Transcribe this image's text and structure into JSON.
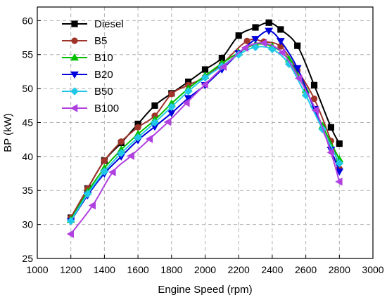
{
  "chart_data": {
    "type": "line",
    "title": "",
    "xlabel": "Engine Speed  (rpm)",
    "ylabel": "BP  (kW)",
    "xlim": [
      1000,
      3000
    ],
    "ylim": [
      25,
      62
    ],
    "x_ticks": [
      1000,
      1200,
      1400,
      1600,
      1800,
      2000,
      2200,
      2400,
      2600,
      2800,
      3000
    ],
    "y_ticks": [
      25,
      30,
      35,
      40,
      45,
      50,
      55,
      60
    ],
    "x_tick_labels": [
      "1000",
      "1200",
      "1400",
      "1600",
      "1800",
      "2000",
      "2200",
      "2400",
      "2600",
      "2800",
      "3000"
    ],
    "y_tick_labels": [
      "25",
      "30",
      "35",
      "40",
      "45",
      "50",
      "55",
      "60"
    ],
    "grid": true,
    "legend_position": "top-left",
    "series": [
      {
        "name": "Diesel",
        "color": "#000000",
        "marker": "square",
        "x": [
          1200,
          1300,
          1400,
          1500,
          1600,
          1700,
          1800,
          1900,
          2000,
          2100,
          2200,
          2300,
          2380,
          2450,
          2550,
          2650,
          2750,
          2800
        ],
        "y": [
          31.0,
          35.3,
          39.4,
          42.0,
          44.8,
          47.5,
          49.3,
          51.0,
          52.8,
          54.5,
          57.8,
          59.0,
          59.7,
          58.7,
          56.3,
          50.5,
          44.3,
          41.9
        ]
      },
      {
        "name": "B5",
        "color": "#a0342a",
        "marker": "circle",
        "x": [
          1200,
          1300,
          1400,
          1500,
          1600,
          1700,
          1800,
          1900,
          2000,
          2100,
          2250,
          2350,
          2450,
          2550,
          2650,
          2750,
          2800
        ],
        "y": [
          31.0,
          35.3,
          39.4,
          42.2,
          44.3,
          46.0,
          49.2,
          50.5,
          51.7,
          53.6,
          57.0,
          56.9,
          56.2,
          52.7,
          48.5,
          42.3,
          38.2
        ]
      },
      {
        "name": "B10",
        "color": "#00c000",
        "marker": "triangle-up",
        "x": [
          1200,
          1300,
          1400,
          1500,
          1600,
          1700,
          1800,
          1900,
          2000,
          2100,
          2200,
          2300,
          2400,
          2500,
          2600,
          2700,
          2800
        ],
        "y": [
          30.7,
          34.8,
          38.3,
          41.0,
          43.3,
          45.4,
          47.8,
          50.0,
          51.9,
          53.7,
          55.3,
          56.5,
          56.2,
          54.3,
          49.8,
          44.5,
          39.6
        ]
      },
      {
        "name": "B20",
        "color": "#0000dd",
        "marker": "triangle-down",
        "x": [
          1200,
          1300,
          1400,
          1500,
          1600,
          1700,
          1800,
          1900,
          2000,
          2100,
          2200,
          2300,
          2380,
          2450,
          2550,
          2650,
          2750,
          2800
        ],
        "y": [
          30.5,
          34.3,
          37.5,
          40.0,
          42.4,
          44.4,
          46.4,
          48.6,
          50.5,
          52.8,
          55.2,
          57.3,
          58.5,
          57.0,
          53.0,
          47.0,
          41.0,
          37.8
        ]
      },
      {
        "name": "B50",
        "color": "#22c8e8",
        "marker": "diamond",
        "x": [
          1200,
          1300,
          1400,
          1500,
          1600,
          1700,
          1800,
          1900,
          2000,
          2100,
          2200,
          2300,
          2400,
          2500,
          2600,
          2700,
          2800
        ],
        "y": [
          30.5,
          34.5,
          37.8,
          40.5,
          42.8,
          45.0,
          47.3,
          49.6,
          51.6,
          53.3,
          55.0,
          56.1,
          55.8,
          53.6,
          49.0,
          44.0,
          39.0
        ]
      },
      {
        "name": "B100",
        "color": "#b040e0",
        "marker": "triangle-left",
        "x": [
          1200,
          1330,
          1450,
          1560,
          1670,
          1780,
          1890,
          2000,
          2110,
          2240,
          2350,
          2460,
          2560,
          2660,
          2750,
          2800
        ],
        "y": [
          28.6,
          32.8,
          37.7,
          40.1,
          42.6,
          45.1,
          47.9,
          50.6,
          53.2,
          56.0,
          56.7,
          55.3,
          51.5,
          46.8,
          40.6,
          36.3
        ]
      }
    ]
  }
}
